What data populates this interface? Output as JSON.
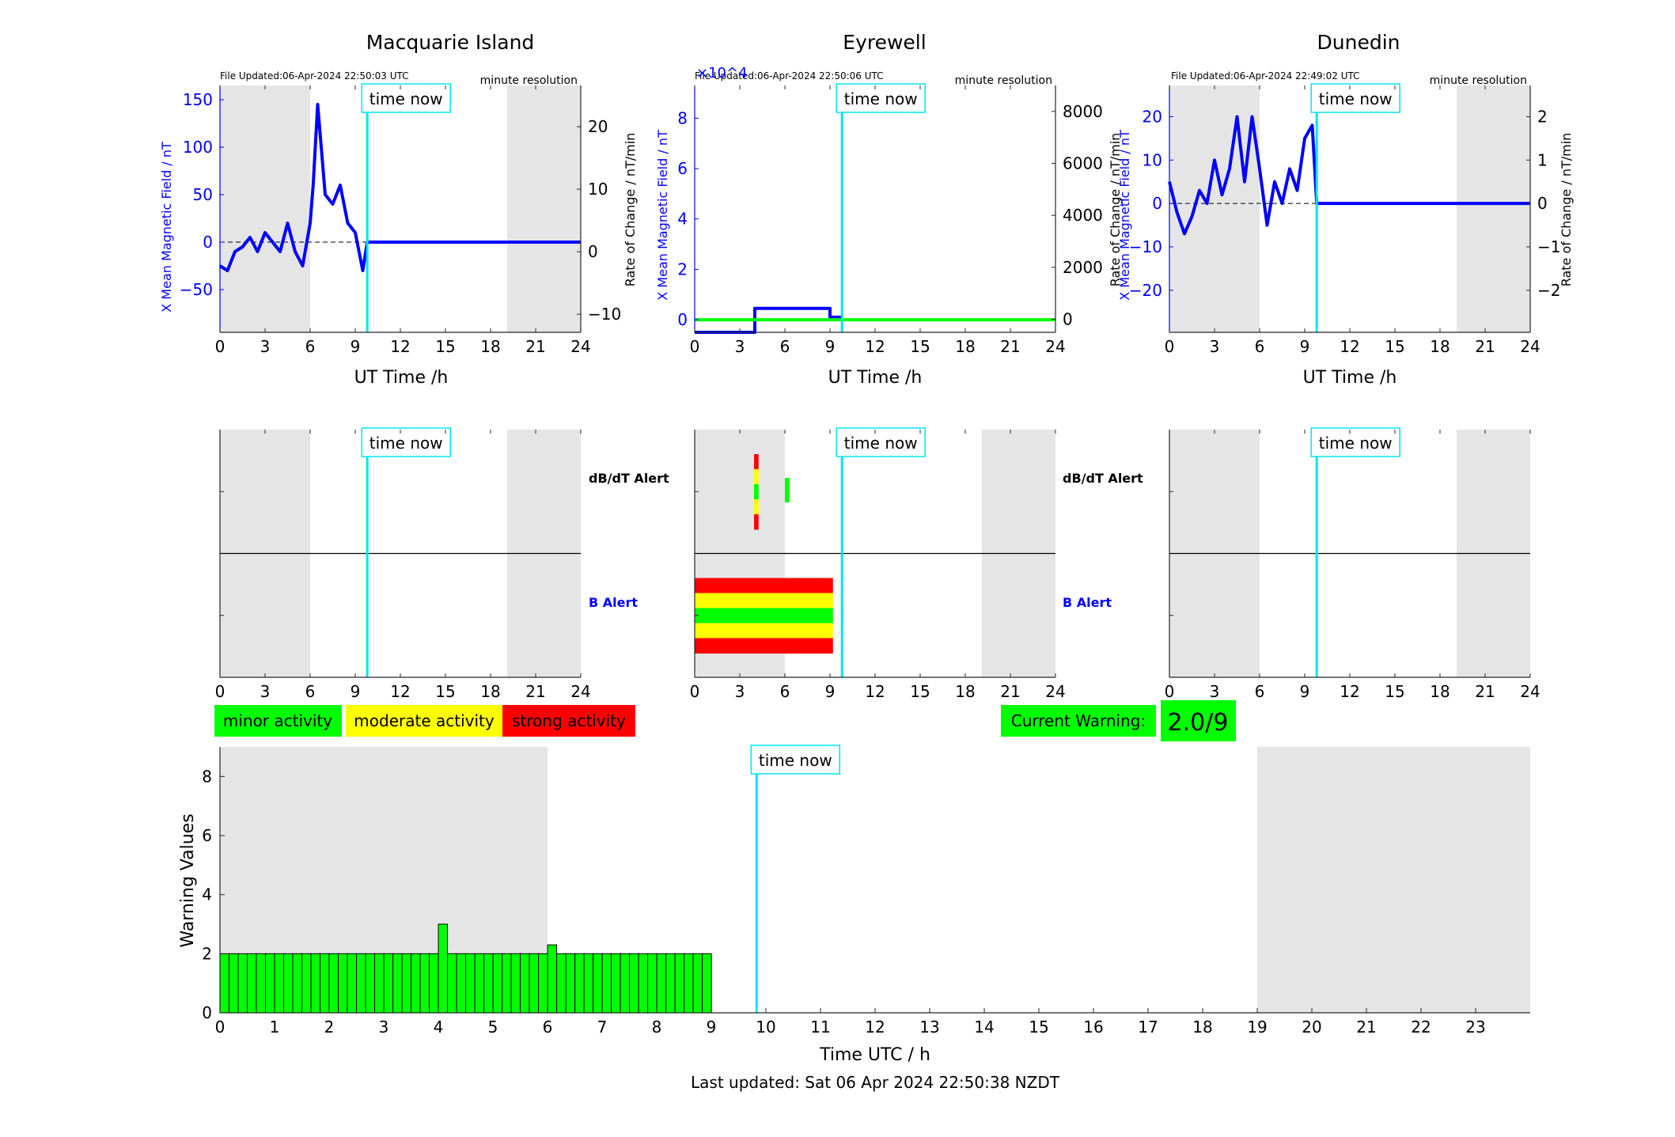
{
  "time_now_label": "time now",
  "footer": "Last updated: Sat 06 Apr 2024 22:50:38 NZDT",
  "legend": {
    "minor": "minor activity",
    "moderate": "moderate activity",
    "strong": "strong activity"
  },
  "current_warning": {
    "label": "Current Warning:",
    "value": "2.0/9"
  },
  "colors": {
    "minor": "#00ff00",
    "moderate": "#ffff00",
    "strong": "#ff0000",
    "time_now": "#00e5ee",
    "b_series": "#0000ff",
    "shade": "#e5e5e5"
  },
  "chart_data": [
    {
      "type": "line",
      "title": "Macquarie Island",
      "file_updated": "File Updated:06-Apr-2024 22:50:03 UTC",
      "resolution": "minute resolution",
      "xlabel": "UT Time /h",
      "ylabel_left": "X Mean Magnetic Field / nT",
      "ylabel_right": "Rate of Change / nT/min",
      "xlim": [
        0,
        24
      ],
      "ylim_left": [
        -95,
        165
      ],
      "ylim_right": [
        -12.9,
        26.6
      ],
      "xticks": [
        0,
        3,
        6,
        9,
        12,
        15,
        18,
        21,
        24
      ],
      "yticks_left": [
        -50,
        0,
        50,
        100,
        150
      ],
      "yticks_right": [
        -10,
        0,
        10,
        20
      ],
      "night_shading": [
        [
          0,
          6
        ],
        [
          19.1,
          24
        ]
      ],
      "time_now": 9.8,
      "series": [
        {
          "values_x": [
            0,
            0.5,
            1,
            1.5,
            2,
            2.5,
            3,
            3.5,
            4,
            4.5,
            5,
            5.5,
            6,
            6.2,
            6.5,
            7,
            7.5,
            8,
            8.5,
            9,
            9.5,
            9.8,
            24
          ],
          "values_y": [
            -25,
            -30,
            -10,
            -5,
            5,
            -10,
            10,
            0,
            -10,
            20,
            -10,
            -25,
            20,
            60,
            145,
            50,
            40,
            60,
            20,
            10,
            -30,
            0,
            0
          ]
        }
      ]
    },
    {
      "type": "line",
      "title": "Eyrewell",
      "file_updated": "File Updated:06-Apr-2024 22:50:06 UTC",
      "exponent_label": "×10^4",
      "resolution": "minute resolution",
      "xlabel": "UT Time /h",
      "ylabel_left": "X Mean Magnetic Field / nT",
      "ylabel_right": "Rate of Change / nT/min",
      "xlim": [
        0,
        24
      ],
      "ylim_left": [
        -0.5,
        9.3
      ],
      "ylim_right": [
        -500,
        9000
      ],
      "xticks": [
        0,
        3,
        6,
        9,
        12,
        15,
        18,
        21,
        24
      ],
      "yticks_left": [
        0,
        2,
        4,
        6,
        8
      ],
      "yticks_right": [
        0,
        2000,
        4000,
        6000,
        8000
      ],
      "time_now": 9.8,
      "series": [
        {
          "values_x": [
            0,
            4,
            4,
            9,
            9,
            9.8
          ],
          "values_y": [
            -0.5,
            -0.5,
            0.45,
            0.45,
            0.1,
            0.1
          ]
        },
        {
          "values_x": [
            0,
            24
          ],
          "values_y": [
            0,
            0
          ]
        }
      ]
    },
    {
      "type": "line",
      "title": "Dunedin",
      "file_updated": "File Updated:06-Apr-2024 22:49:02 UTC",
      "resolution": "minute resolution",
      "xlabel": "UT Time /h",
      "ylabel_left": "X Mean Magnetic Field / nT",
      "ylabel_right": "Rate of Change / nT/min",
      "xlim": [
        0,
        24
      ],
      "ylim_left": [
        -29.7,
        27.2
      ],
      "ylim_right": [
        -2.97,
        2.72
      ],
      "xticks": [
        0,
        3,
        6,
        9,
        12,
        15,
        18,
        21,
        24
      ],
      "yticks_left": [
        -20,
        -10,
        0,
        10,
        20
      ],
      "yticks_right": [
        -2,
        -1,
        0,
        1,
        2
      ],
      "night_shading": [
        [
          0,
          6
        ],
        [
          19.1,
          24
        ]
      ],
      "time_now": 9.8,
      "series": [
        {
          "values_x": [
            0,
            0.5,
            1,
            1.5,
            2,
            2.5,
            3,
            3.5,
            4,
            4.5,
            5,
            5.5,
            6,
            6.5,
            7,
            7.5,
            8,
            8.5,
            9,
            9.5,
            9.8,
            24
          ],
          "values_y": [
            5,
            -2,
            -7,
            -3,
            3,
            0,
            10,
            2,
            8,
            20,
            5,
            20,
            8,
            -5,
            5,
            0,
            8,
            3,
            15,
            18,
            0,
            0
          ]
        }
      ]
    },
    {
      "type": "bar",
      "station": "Macquarie Island",
      "alerts": [
        "dB/dT Alert",
        "B Alert"
      ],
      "xlim": [
        0,
        24
      ],
      "xticks": [
        0,
        3,
        6,
        9,
        12,
        15,
        18,
        21,
        24
      ],
      "night_shading": [
        [
          0,
          6
        ],
        [
          19.1,
          24
        ]
      ],
      "time_now": 9.8,
      "db_dt_bars": [],
      "b_alert_bars": []
    },
    {
      "type": "bar",
      "station": "Eyrewell",
      "alerts": [
        "dB/dT Alert",
        "B Alert"
      ],
      "xlim": [
        0,
        24
      ],
      "xticks": [
        0,
        3,
        6,
        9,
        12,
        15,
        18,
        21,
        24
      ],
      "night_shading": [
        [
          0,
          6
        ],
        [
          19.1,
          24
        ]
      ],
      "time_now": 9.8,
      "db_dt_bars": [
        {
          "x0": 3.95,
          "x1": 4.25,
          "level": "strong"
        },
        {
          "x0": 6.0,
          "x1": 6.3,
          "level": "minor"
        }
      ],
      "b_alert_bars": [
        {
          "x0": 0,
          "x1": 9.2,
          "level": "strong"
        }
      ]
    },
    {
      "type": "bar",
      "station": "Dunedin",
      "alerts": [
        "dB/dT Alert",
        "B Alert"
      ],
      "xlim": [
        0,
        24
      ],
      "xticks": [
        0,
        3,
        6,
        9,
        12,
        15,
        18,
        21,
        24
      ],
      "night_shading": [
        [
          0,
          6
        ],
        [
          19.1,
          24
        ]
      ],
      "time_now": 9.8,
      "db_dt_bars": [],
      "b_alert_bars": []
    },
    {
      "type": "bar",
      "xlabel": "Time UTC / h",
      "ylabel": "Warning Values",
      "xlim": [
        0,
        24
      ],
      "ylim": [
        0,
        9
      ],
      "xticks": [
        0,
        1,
        2,
        3,
        4,
        5,
        6,
        7,
        8,
        9,
        10,
        11,
        12,
        13,
        14,
        15,
        16,
        17,
        18,
        19,
        20,
        21,
        22,
        23
      ],
      "yticks": [
        0,
        2,
        4,
        6,
        8
      ],
      "night_shading": [
        [
          0,
          6
        ],
        [
          19,
          24
        ]
      ],
      "time_now": 9.83,
      "bar_width_h": 0.1667,
      "values": [
        2,
        2,
        2,
        2,
        2,
        2,
        2,
        2,
        2,
        2,
        2,
        2,
        2,
        2,
        2,
        2,
        2,
        2,
        2,
        2,
        2,
        2,
        2,
        2,
        3,
        2,
        2,
        2,
        2,
        2,
        2,
        2,
        2,
        2,
        2,
        2,
        2.3,
        2,
        2,
        2,
        2,
        2,
        2,
        2,
        2,
        2,
        2,
        2,
        2,
        2,
        2,
        2,
        2,
        2
      ]
    }
  ]
}
